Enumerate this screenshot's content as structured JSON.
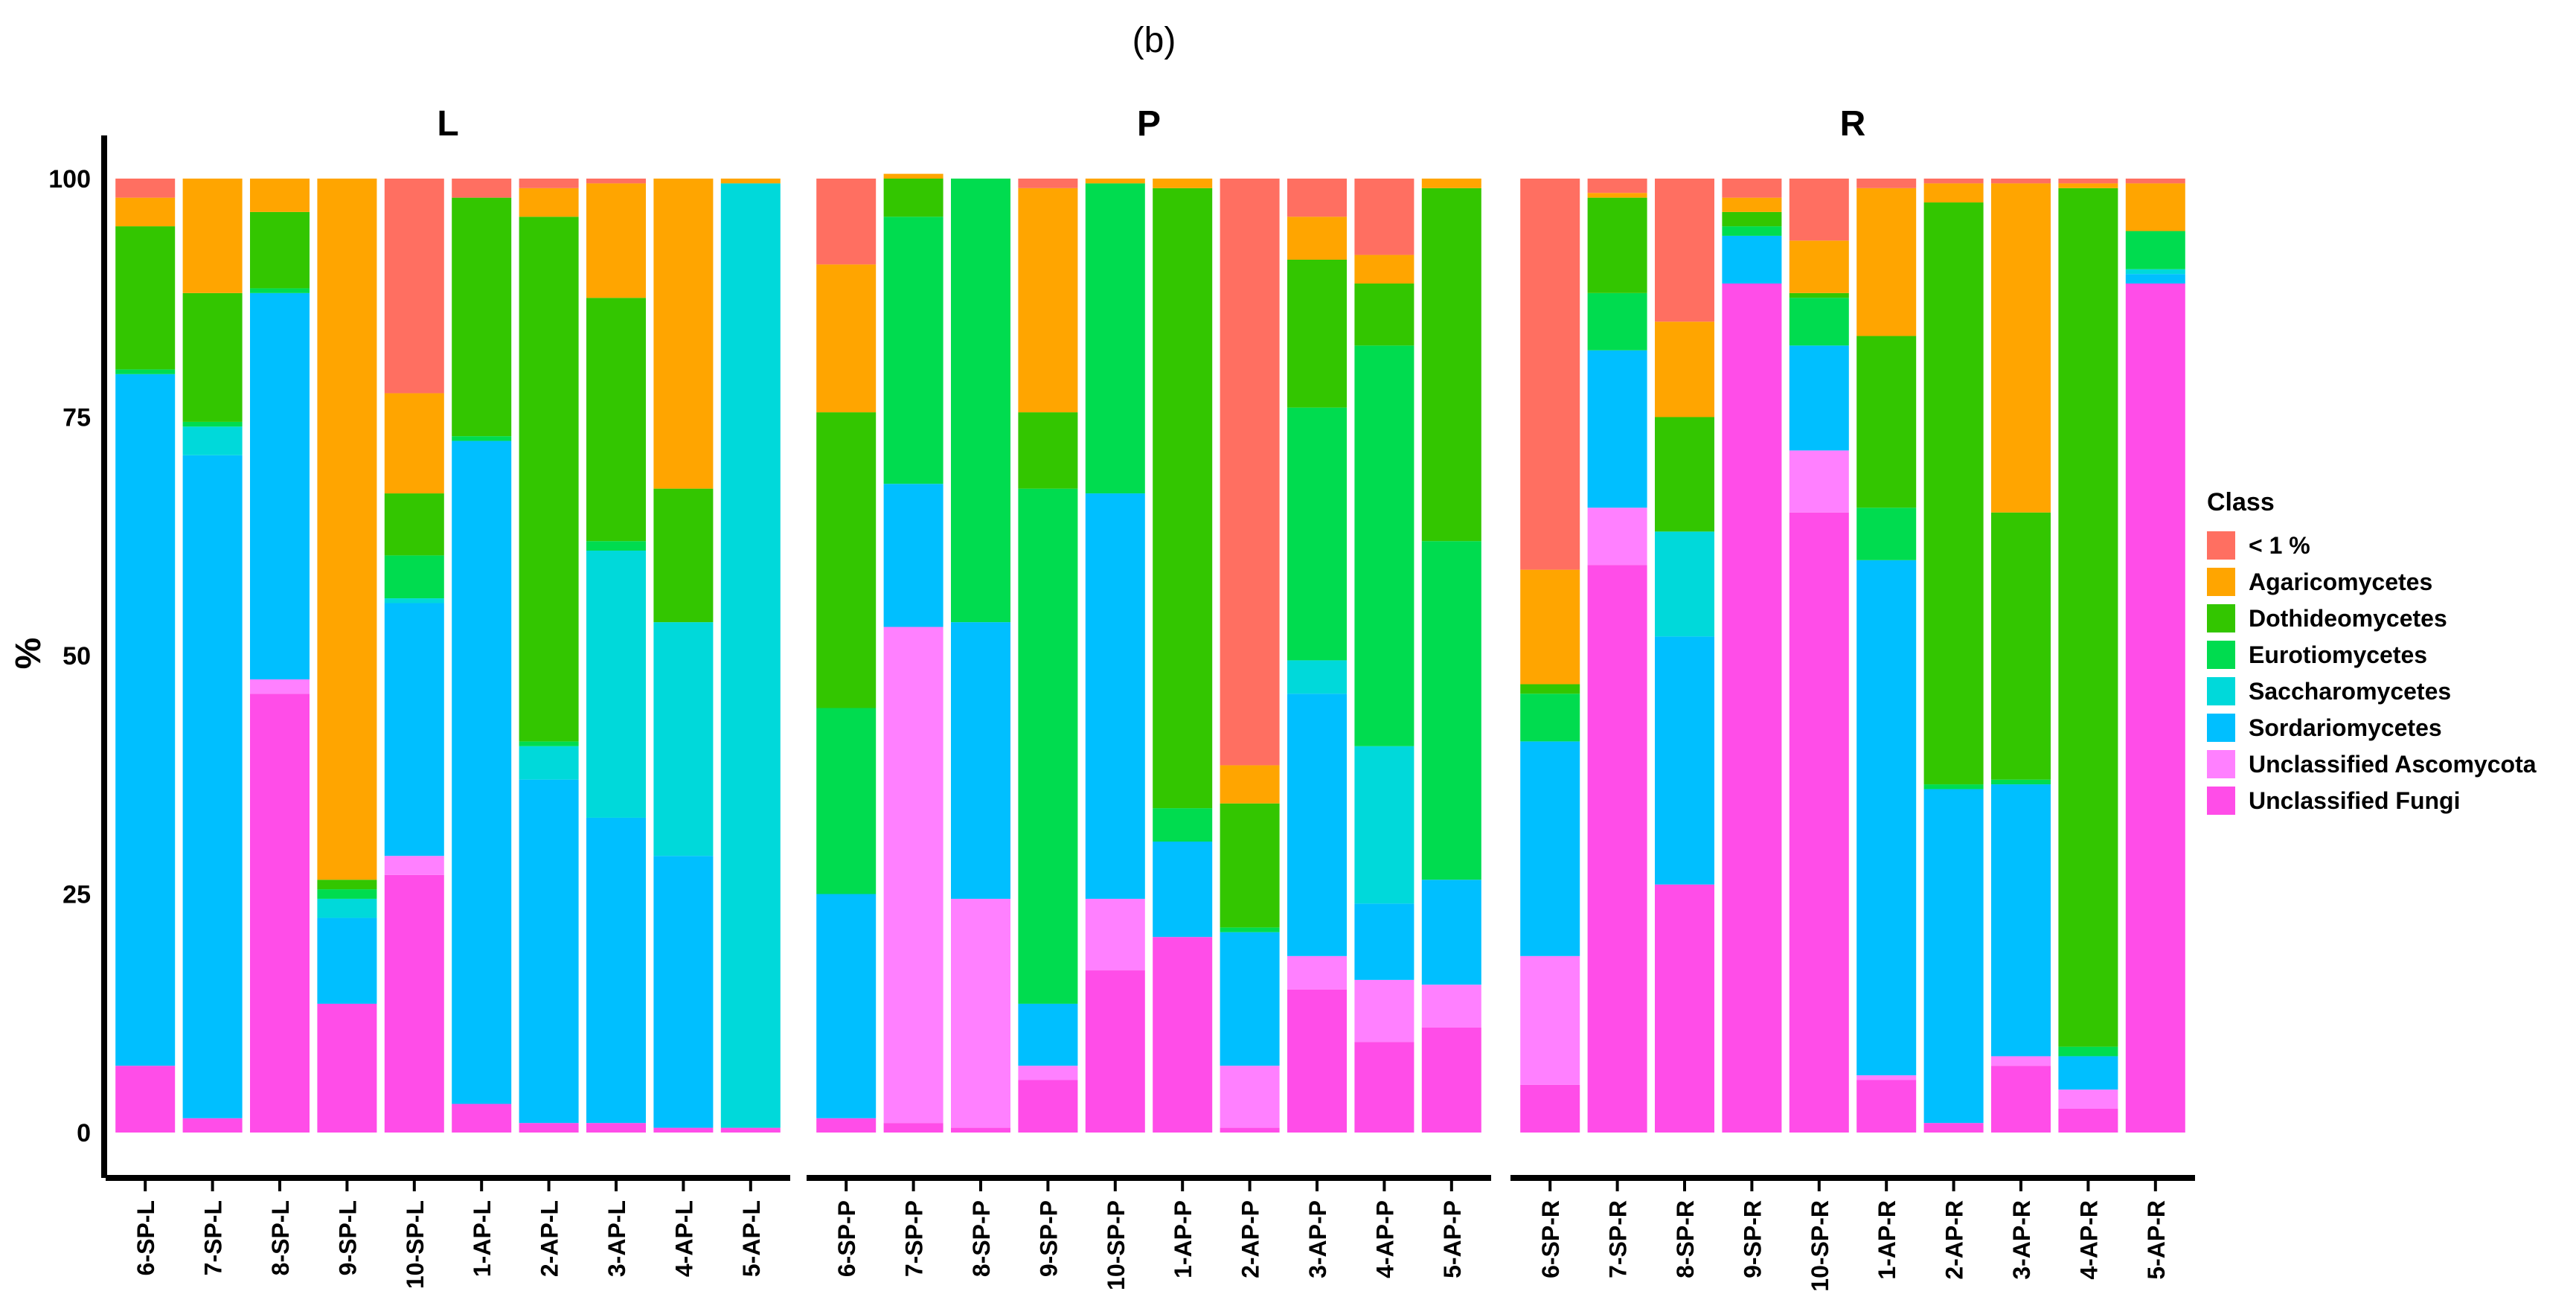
{
  "figure_label": "(b)",
  "chart_data": {
    "type": "bar",
    "stacked": true,
    "ylabel": "%",
    "ylim": [
      0,
      100
    ],
    "yticks": [
      0,
      25,
      50,
      75,
      100
    ],
    "grid": false,
    "legend_title": "Class",
    "legend_position": "right",
    "series": [
      {
        "name": "Unclassified Fungi",
        "color": "#FF4DE8"
      },
      {
        "name": "Unclassified Ascomycota",
        "color": "#FF80FF"
      },
      {
        "name": "Sordariomycetes",
        "color": "#00BFFF"
      },
      {
        "name": "Saccharomycetes",
        "color": "#00D9DA"
      },
      {
        "name": "Eurotiomycetes",
        "color": "#00DC4F"
      },
      {
        "name": "Dothideomycetes",
        "color": "#33C600"
      },
      {
        "name": "Agaricomycetes",
        "color": "#FFA500"
      },
      {
        "name": "< 1 %",
        "color": "#FF6F61"
      }
    ],
    "legend_order": [
      "< 1 %",
      "Agaricomycetes",
      "Dothideomycetes",
      "Eurotiomycetes",
      "Saccharomycetes",
      "Sordariomycetes",
      "Unclassified Ascomycota",
      "Unclassified Fungi"
    ],
    "panels": [
      {
        "title": "L",
        "categories": [
          "6-SP-L",
          "7-SP-L",
          "8-SP-L",
          "9-SP-L",
          "10-SP-L",
          "1-AP-L",
          "2-AP-L",
          "3-AP-L",
          "4-AP-L",
          "5-AP-L"
        ],
        "values": [
          [
            7,
            0,
            72.5,
            0,
            0.5,
            15,
            3,
            2
          ],
          [
            1.5,
            0,
            69.5,
            3,
            0.5,
            13.5,
            12,
            0
          ],
          [
            46,
            1.5,
            40.5,
            0,
            0.5,
            8,
            3.5,
            0
          ],
          [
            13.5,
            0,
            9,
            2,
            1,
            1,
            73.5,
            0
          ],
          [
            27,
            2,
            26.5,
            0.5,
            4.5,
            6.5,
            10.5,
            22.5
          ],
          [
            3,
            0,
            69.5,
            0,
            0.5,
            25,
            0,
            2
          ],
          [
            1,
            0,
            36,
            3.5,
            0.5,
            55,
            3,
            1
          ],
          [
            1,
            0,
            32,
            28,
            1,
            25.5,
            12,
            0.5
          ],
          [
            0.5,
            0,
            28.5,
            24.5,
            0,
            14,
            32.5,
            0
          ],
          [
            0.5,
            0,
            0,
            99,
            0,
            0,
            0.5,
            0
          ]
        ]
      },
      {
        "title": "P",
        "categories": [
          "6-SP-P",
          "7-SP-P",
          "8-SP-P",
          "9-SP-P",
          "10-SP-P",
          "1-AP-P",
          "2-AP-P",
          "3-AP-P",
          "4-AP-P",
          "5-AP-P"
        ],
        "values": [
          [
            1.5,
            0,
            23.5,
            0,
            19.5,
            31,
            15.5,
            9
          ],
          [
            1,
            52,
            15,
            0,
            28,
            4,
            0.5,
            0
          ],
          [
            0.5,
            24,
            29,
            0,
            46.5,
            0,
            0,
            0
          ],
          [
            5.5,
            1.5,
            6.5,
            0,
            54,
            8,
            23.5,
            1
          ],
          [
            17,
            7.5,
            42.5,
            0,
            32.5,
            0,
            0.5,
            0
          ],
          [
            20.5,
            0,
            10,
            0,
            3.5,
            65,
            1,
            0
          ],
          [
            0.5,
            6.5,
            14,
            0,
            0.5,
            13,
            4,
            61.5
          ],
          [
            15,
            3.5,
            27.5,
            3.5,
            26.5,
            15.5,
            4.5,
            4
          ],
          [
            9.5,
            6.5,
            8,
            16.5,
            42,
            6.5,
            3,
            8
          ],
          [
            11,
            4.5,
            11,
            0,
            35.5,
            37,
            1,
            0
          ]
        ]
      },
      {
        "title": "R",
        "categories": [
          "6-SP-R",
          "7-SP-R",
          "8-SP-R",
          "9-SP-R",
          "10-SP-R",
          "1-AP-R",
          "2-AP-R",
          "3-AP-R",
          "4-AP-R",
          "5-AP-R"
        ],
        "values": [
          [
            5,
            13.5,
            22.5,
            0,
            5,
            1,
            12,
            41
          ],
          [
            59.5,
            6,
            16.5,
            0,
            6,
            10,
            0.5,
            1.5
          ],
          [
            26,
            0,
            26,
            11,
            0,
            12,
            10,
            15
          ],
          [
            89,
            0,
            5,
            0,
            1,
            1.5,
            1.5,
            2
          ],
          [
            65,
            6.5,
            11,
            0,
            5,
            0.5,
            5.5,
            6.5
          ],
          [
            5.5,
            0.5,
            54,
            0,
            5.5,
            18,
            15.5,
            1
          ],
          [
            1,
            0,
            35,
            0,
            0.5,
            61,
            2,
            0.5
          ],
          [
            7,
            1,
            28.5,
            0,
            0.5,
            28,
            34.5,
            0.5
          ],
          [
            2.5,
            2,
            3.5,
            0,
            1,
            90,
            0.5,
            0.5
          ],
          [
            89,
            0,
            1,
            0.5,
            4,
            0,
            5,
            0.5
          ]
        ]
      }
    ]
  }
}
